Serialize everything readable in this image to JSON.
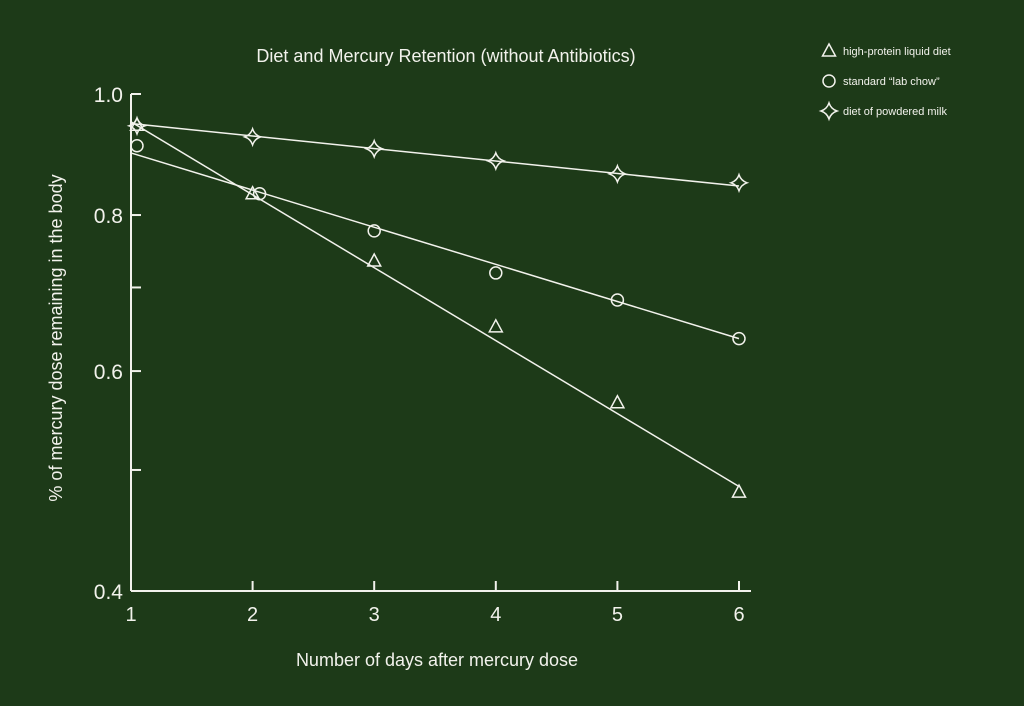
{
  "chart_data": {
    "type": "line",
    "title": "Diet and Mercury Retention (without Antibiotics)",
    "xlabel": "Number of days after mercury dose",
    "ylabel": "% of mercury dose remaining in the body",
    "x": [
      1,
      2,
      3,
      4,
      5,
      6
    ],
    "xlim": [
      1,
      6
    ],
    "ylim": [
      0.4,
      1.0
    ],
    "yscale": "log",
    "xticks": [
      "1",
      "2",
      "3",
      "4",
      "5",
      "6"
    ],
    "yticks": [
      0.4,
      0.5,
      0.6,
      0.7,
      0.8,
      1.0
    ],
    "ytick_labels": {
      "0.4": "0.4",
      "0.6": "0.6",
      "0.8": "0.8",
      "1.0": "1.0"
    },
    "grid": false,
    "legend_position": "top-right",
    "colors": {
      "background": "#1d3a18",
      "foreground": "#f2f2ec"
    },
    "series": [
      {
        "name": "high-protein liquid diet",
        "marker": "triangle",
        "values": [
          0.944,
          0.832,
          0.735,
          0.651,
          0.566,
          0.48
        ],
        "fit": [
          0.95,
          0.485
        ]
      },
      {
        "name": "standard “lab chow”",
        "marker": "circle",
        "values": [
          0.909,
          0.832,
          0.777,
          0.719,
          0.684,
          0.637
        ],
        "fit": [
          0.897,
          0.637
        ]
      },
      {
        "name": "diet of powdered milk",
        "marker": "star",
        "values": [
          0.943,
          0.924,
          0.904,
          0.884,
          0.863,
          0.849
        ],
        "fit": [
          0.947,
          0.844
        ]
      }
    ]
  }
}
